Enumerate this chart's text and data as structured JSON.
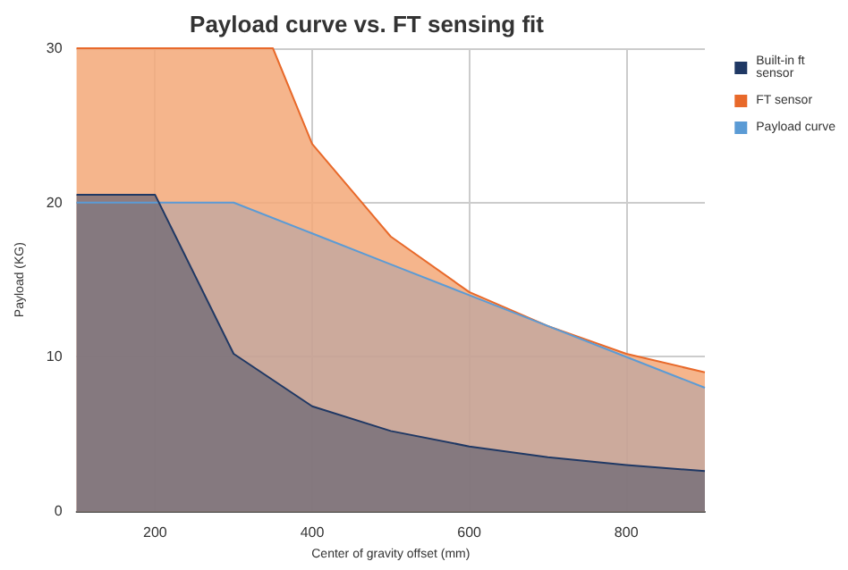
{
  "chart_data": {
    "type": "area",
    "title": "Payload curve vs. FT sensing fit",
    "xlabel": "Center of gravity offset (mm)",
    "ylabel": "Payload (KG)",
    "xlim": [
      100,
      900
    ],
    "xticks": [
      200,
      400,
      600,
      800
    ],
    "ylim": [
      0,
      30
    ],
    "yticks": [
      0,
      10,
      20,
      30
    ],
    "grid": true,
    "legend": "top right",
    "marker": "none",
    "series": [
      {
        "name": "Built-in ft sensor",
        "color": "#1f3864",
        "x": [
          100,
          200,
          300,
          400,
          500,
          600,
          700,
          800,
          900
        ],
        "values": [
          20.5,
          20.5,
          10.2,
          6.8,
          5.2,
          4.2,
          3.5,
          3.0,
          2.6
        ]
      },
      {
        "name": "FT sensor",
        "color": "#e8692a",
        "x": [
          100,
          350,
          400,
          500,
          600,
          700,
          800,
          900
        ],
        "values": [
          30,
          30,
          23.8,
          17.8,
          14.2,
          12,
          10.2,
          9.0
        ]
      },
      {
        "name": "Payload curve",
        "color": "#5b9bd5",
        "x": [
          100,
          300,
          400,
          500,
          600,
          700,
          800,
          900
        ],
        "values": [
          20,
          20,
          18,
          16,
          14,
          12,
          10,
          8
        ]
      }
    ]
  }
}
